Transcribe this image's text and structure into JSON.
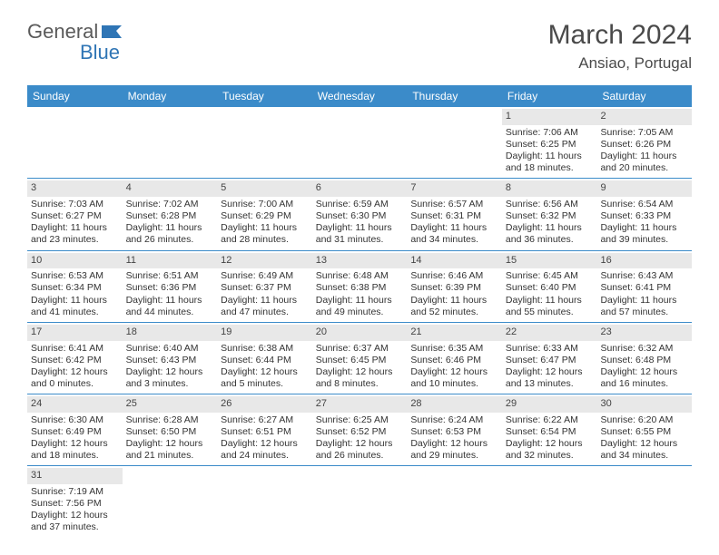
{
  "brand": {
    "part1": "General",
    "part2": "Blue"
  },
  "title": "March 2024",
  "location": "Ansiao, Portugal",
  "colors": {
    "header_bg": "#3b8bc9",
    "header_text": "#ffffff",
    "daynum_bg": "#e8e8e8",
    "row_border": "#3b8bc9",
    "logo_gray": "#5a5a5a",
    "logo_blue": "#2f75b5"
  },
  "days_of_week": [
    "Sunday",
    "Monday",
    "Tuesday",
    "Wednesday",
    "Thursday",
    "Friday",
    "Saturday"
  ],
  "weeks": [
    [
      null,
      null,
      null,
      null,
      null,
      {
        "n": "1",
        "sr": "Sunrise: 7:06 AM",
        "ss": "Sunset: 6:25 PM",
        "d1": "Daylight: 11 hours",
        "d2": "and 18 minutes."
      },
      {
        "n": "2",
        "sr": "Sunrise: 7:05 AM",
        "ss": "Sunset: 6:26 PM",
        "d1": "Daylight: 11 hours",
        "d2": "and 20 minutes."
      }
    ],
    [
      {
        "n": "3",
        "sr": "Sunrise: 7:03 AM",
        "ss": "Sunset: 6:27 PM",
        "d1": "Daylight: 11 hours",
        "d2": "and 23 minutes."
      },
      {
        "n": "4",
        "sr": "Sunrise: 7:02 AM",
        "ss": "Sunset: 6:28 PM",
        "d1": "Daylight: 11 hours",
        "d2": "and 26 minutes."
      },
      {
        "n": "5",
        "sr": "Sunrise: 7:00 AM",
        "ss": "Sunset: 6:29 PM",
        "d1": "Daylight: 11 hours",
        "d2": "and 28 minutes."
      },
      {
        "n": "6",
        "sr": "Sunrise: 6:59 AM",
        "ss": "Sunset: 6:30 PM",
        "d1": "Daylight: 11 hours",
        "d2": "and 31 minutes."
      },
      {
        "n": "7",
        "sr": "Sunrise: 6:57 AM",
        "ss": "Sunset: 6:31 PM",
        "d1": "Daylight: 11 hours",
        "d2": "and 34 minutes."
      },
      {
        "n": "8",
        "sr": "Sunrise: 6:56 AM",
        "ss": "Sunset: 6:32 PM",
        "d1": "Daylight: 11 hours",
        "d2": "and 36 minutes."
      },
      {
        "n": "9",
        "sr": "Sunrise: 6:54 AM",
        "ss": "Sunset: 6:33 PM",
        "d1": "Daylight: 11 hours",
        "d2": "and 39 minutes."
      }
    ],
    [
      {
        "n": "10",
        "sr": "Sunrise: 6:53 AM",
        "ss": "Sunset: 6:34 PM",
        "d1": "Daylight: 11 hours",
        "d2": "and 41 minutes."
      },
      {
        "n": "11",
        "sr": "Sunrise: 6:51 AM",
        "ss": "Sunset: 6:36 PM",
        "d1": "Daylight: 11 hours",
        "d2": "and 44 minutes."
      },
      {
        "n": "12",
        "sr": "Sunrise: 6:49 AM",
        "ss": "Sunset: 6:37 PM",
        "d1": "Daylight: 11 hours",
        "d2": "and 47 minutes."
      },
      {
        "n": "13",
        "sr": "Sunrise: 6:48 AM",
        "ss": "Sunset: 6:38 PM",
        "d1": "Daylight: 11 hours",
        "d2": "and 49 minutes."
      },
      {
        "n": "14",
        "sr": "Sunrise: 6:46 AM",
        "ss": "Sunset: 6:39 PM",
        "d1": "Daylight: 11 hours",
        "d2": "and 52 minutes."
      },
      {
        "n": "15",
        "sr": "Sunrise: 6:45 AM",
        "ss": "Sunset: 6:40 PM",
        "d1": "Daylight: 11 hours",
        "d2": "and 55 minutes."
      },
      {
        "n": "16",
        "sr": "Sunrise: 6:43 AM",
        "ss": "Sunset: 6:41 PM",
        "d1": "Daylight: 11 hours",
        "d2": "and 57 minutes."
      }
    ],
    [
      {
        "n": "17",
        "sr": "Sunrise: 6:41 AM",
        "ss": "Sunset: 6:42 PM",
        "d1": "Daylight: 12 hours",
        "d2": "and 0 minutes."
      },
      {
        "n": "18",
        "sr": "Sunrise: 6:40 AM",
        "ss": "Sunset: 6:43 PM",
        "d1": "Daylight: 12 hours",
        "d2": "and 3 minutes."
      },
      {
        "n": "19",
        "sr": "Sunrise: 6:38 AM",
        "ss": "Sunset: 6:44 PM",
        "d1": "Daylight: 12 hours",
        "d2": "and 5 minutes."
      },
      {
        "n": "20",
        "sr": "Sunrise: 6:37 AM",
        "ss": "Sunset: 6:45 PM",
        "d1": "Daylight: 12 hours",
        "d2": "and 8 minutes."
      },
      {
        "n": "21",
        "sr": "Sunrise: 6:35 AM",
        "ss": "Sunset: 6:46 PM",
        "d1": "Daylight: 12 hours",
        "d2": "and 10 minutes."
      },
      {
        "n": "22",
        "sr": "Sunrise: 6:33 AM",
        "ss": "Sunset: 6:47 PM",
        "d1": "Daylight: 12 hours",
        "d2": "and 13 minutes."
      },
      {
        "n": "23",
        "sr": "Sunrise: 6:32 AM",
        "ss": "Sunset: 6:48 PM",
        "d1": "Daylight: 12 hours",
        "d2": "and 16 minutes."
      }
    ],
    [
      {
        "n": "24",
        "sr": "Sunrise: 6:30 AM",
        "ss": "Sunset: 6:49 PM",
        "d1": "Daylight: 12 hours",
        "d2": "and 18 minutes."
      },
      {
        "n": "25",
        "sr": "Sunrise: 6:28 AM",
        "ss": "Sunset: 6:50 PM",
        "d1": "Daylight: 12 hours",
        "d2": "and 21 minutes."
      },
      {
        "n": "26",
        "sr": "Sunrise: 6:27 AM",
        "ss": "Sunset: 6:51 PM",
        "d1": "Daylight: 12 hours",
        "d2": "and 24 minutes."
      },
      {
        "n": "27",
        "sr": "Sunrise: 6:25 AM",
        "ss": "Sunset: 6:52 PM",
        "d1": "Daylight: 12 hours",
        "d2": "and 26 minutes."
      },
      {
        "n": "28",
        "sr": "Sunrise: 6:24 AM",
        "ss": "Sunset: 6:53 PM",
        "d1": "Daylight: 12 hours",
        "d2": "and 29 minutes."
      },
      {
        "n": "29",
        "sr": "Sunrise: 6:22 AM",
        "ss": "Sunset: 6:54 PM",
        "d1": "Daylight: 12 hours",
        "d2": "and 32 minutes."
      },
      {
        "n": "30",
        "sr": "Sunrise: 6:20 AM",
        "ss": "Sunset: 6:55 PM",
        "d1": "Daylight: 12 hours",
        "d2": "and 34 minutes."
      }
    ],
    [
      {
        "n": "31",
        "sr": "Sunrise: 7:19 AM",
        "ss": "Sunset: 7:56 PM",
        "d1": "Daylight: 12 hours",
        "d2": "and 37 minutes."
      },
      null,
      null,
      null,
      null,
      null,
      null
    ]
  ]
}
